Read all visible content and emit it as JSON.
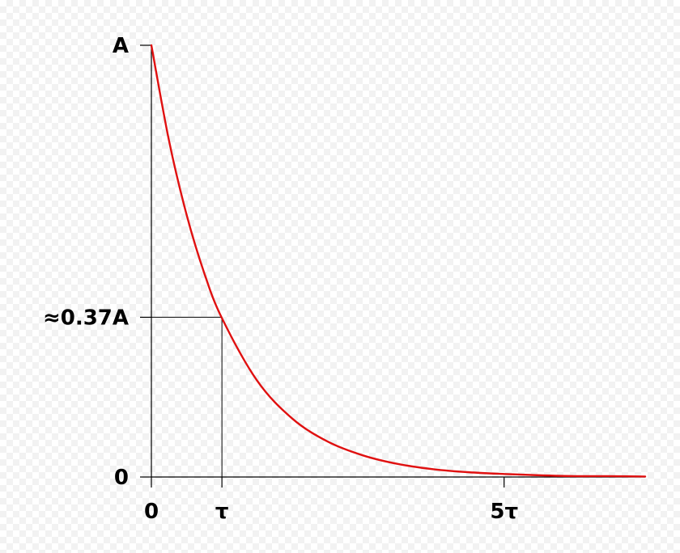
{
  "chart_data": {
    "type": "line",
    "title": "",
    "xlabel": "",
    "ylabel": "",
    "function": "A·e^(−t/τ)",
    "xlim": [
      0,
      7
    ],
    "ylim": [
      0,
      1
    ],
    "x_tick_values": [
      0,
      1,
      5
    ],
    "x_tick_labels": [
      "0",
      "τ",
      "5τ"
    ],
    "y_tick_values": [
      0,
      0.37,
      1
    ],
    "y_tick_labels": [
      "0",
      "≈0.37A",
      "A"
    ],
    "series": [
      {
        "color": "#e01010",
        "x": [
          0,
          0.25,
          0.5,
          0.75,
          1,
          1.5,
          2,
          2.5,
          3,
          3.5,
          4,
          4.5,
          5,
          5.5,
          6,
          6.5,
          7
        ],
        "y": [
          1,
          0.779,
          0.607,
          0.472,
          0.368,
          0.223,
          0.135,
          0.082,
          0.05,
          0.03,
          0.018,
          0.011,
          0.007,
          0.004,
          0.002,
          0.002,
          0.001
        ]
      }
    ],
    "reference_point": {
      "x": 1,
      "y": 0.37
    },
    "grid": false,
    "legend": "none",
    "axis_color": "#000000"
  }
}
